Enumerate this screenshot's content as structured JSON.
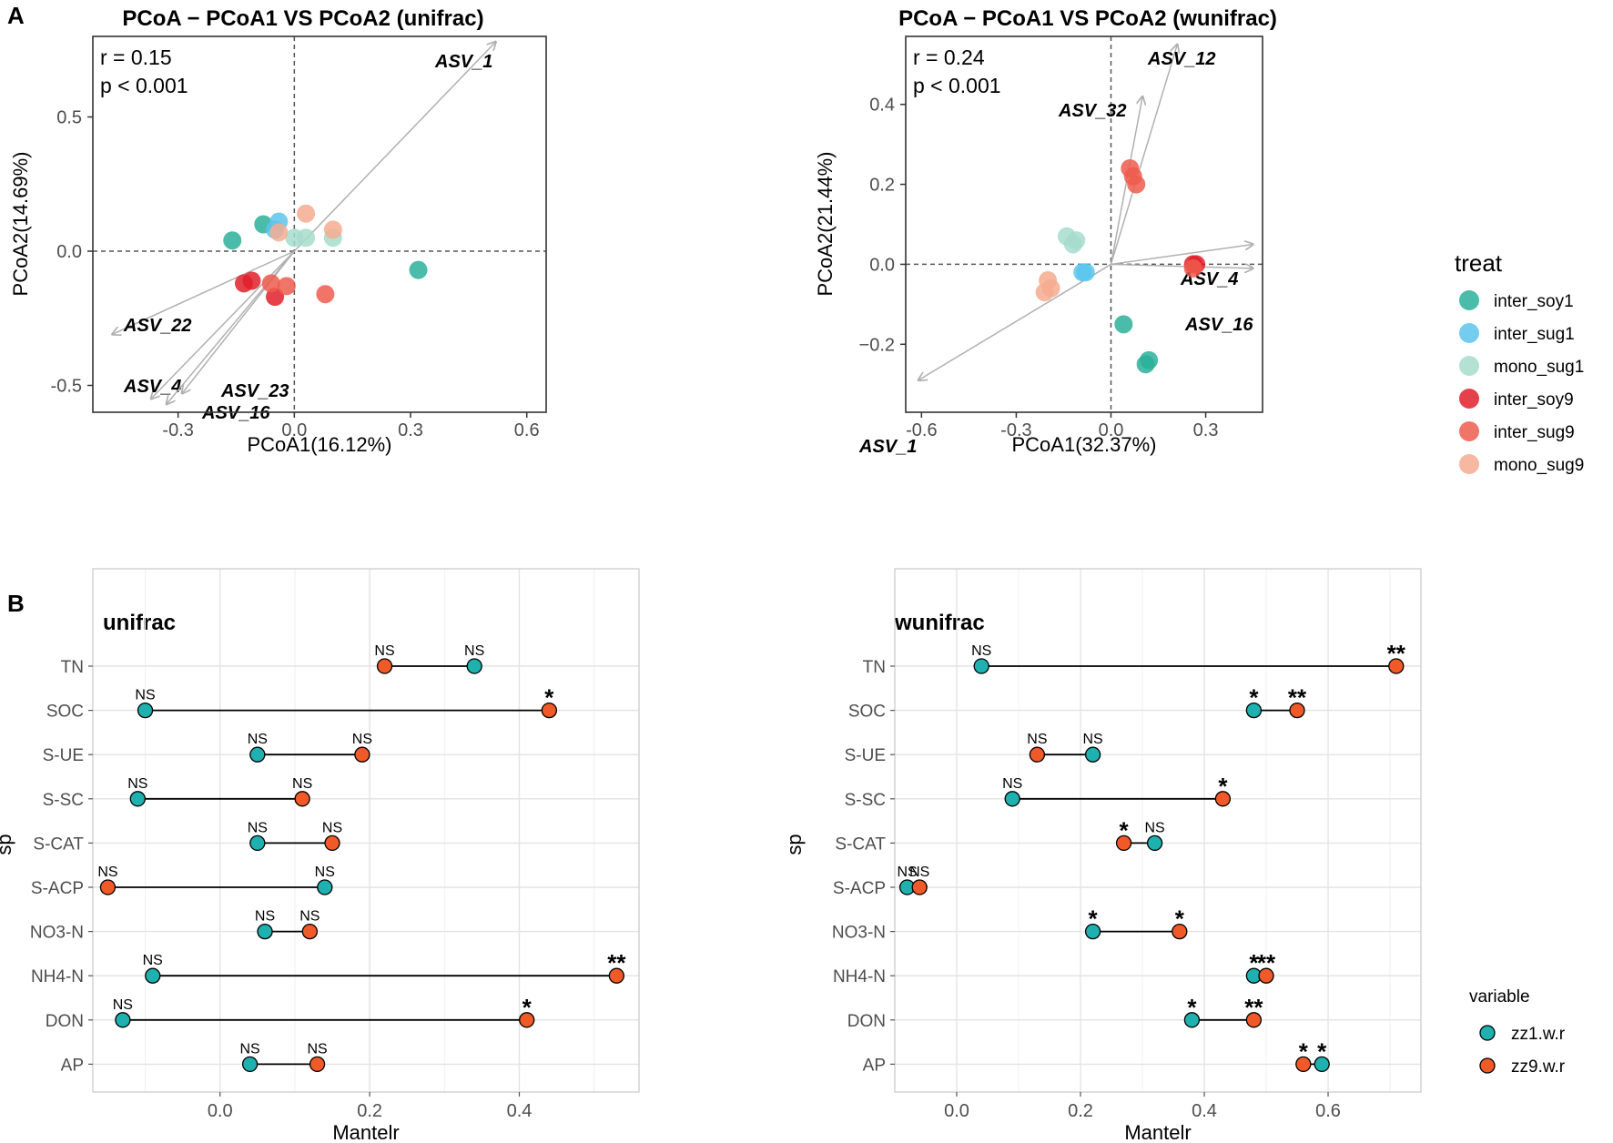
{
  "panel_labels": {
    "a": "A",
    "b": "B"
  },
  "colors": {
    "inter_soy1": "#2ab09a",
    "inter_sug1": "#5cc4ec",
    "mono_sug1": "#a6dccb",
    "inter_soy9": "#e0202a",
    "inter_sug9": "#ee5c4e",
    "mono_sug9": "#f6ab91",
    "zz1": "#1fb0b0",
    "zz9": "#f05a28"
  },
  "chart_data": [
    {
      "type": "scatter",
      "id": "pcoa_unifrac",
      "title": "PCoA − PCoA1 VS PCoA2 (unifrac)",
      "xlabel": "PCoA1(16.12%)",
      "ylabel": "PCoA2(14.69%)",
      "xlim": [
        -0.52,
        0.65
      ],
      "ylim": [
        -0.6,
        0.8
      ],
      "xticks": [
        -0.3,
        0.0,
        0.3,
        0.6
      ],
      "xtick_labels": [
        "-0.3",
        "0.0",
        "0.3",
        "0.6"
      ],
      "yticks": [
        -0.5,
        0.0,
        0.5
      ],
      "ytick_labels": [
        "-0.5",
        "0.0",
        "0.5"
      ],
      "stats": {
        "r": "r = 0.15",
        "p": "p < 0.001"
      },
      "points": [
        {
          "group": "inter_soy1",
          "x": -0.16,
          "y": 0.04
        },
        {
          "group": "inter_soy1",
          "x": -0.08,
          "y": 0.1
        },
        {
          "group": "inter_soy1",
          "x": 0.32,
          "y": -0.07
        },
        {
          "group": "inter_sug1",
          "x": -0.04,
          "y": 0.11
        },
        {
          "group": "inter_sug1",
          "x": -0.05,
          "y": 0.08
        },
        {
          "group": "mono_sug1",
          "x": 0.0,
          "y": 0.05
        },
        {
          "group": "mono_sug1",
          "x": 0.03,
          "y": 0.05
        },
        {
          "group": "mono_sug1",
          "x": 0.1,
          "y": 0.05
        },
        {
          "group": "mono_sug9",
          "x": -0.04,
          "y": 0.07
        },
        {
          "group": "mono_sug9",
          "x": 0.03,
          "y": 0.14
        },
        {
          "group": "mono_sug9",
          "x": 0.1,
          "y": 0.08
        },
        {
          "group": "inter_soy9",
          "x": -0.13,
          "y": -0.12
        },
        {
          "group": "inter_soy9",
          "x": -0.11,
          "y": -0.11
        },
        {
          "group": "inter_soy9",
          "x": -0.05,
          "y": -0.17
        },
        {
          "group": "inter_sug9",
          "x": -0.06,
          "y": -0.12
        },
        {
          "group": "inter_sug9",
          "x": -0.02,
          "y": -0.13
        },
        {
          "group": "inter_sug9",
          "x": 0.08,
          "y": -0.16
        }
      ],
      "arrows": [
        {
          "name": "ASV_1",
          "x": 0.52,
          "y": 0.78
        },
        {
          "name": "ASV_22",
          "x": -0.47,
          "y": -0.31
        },
        {
          "name": "ASV_4",
          "x": -0.37,
          "y": -0.55
        },
        {
          "name": "ASV_23",
          "x": -0.29,
          "y": -0.53
        },
        {
          "name": "ASV_16",
          "x": -0.33,
          "y": -0.57
        }
      ]
    },
    {
      "type": "scatter",
      "id": "pcoa_wunifrac",
      "title": "PCoA − PCoA1 VS PCoA2 (wunifrac)",
      "xlabel": "PCoA1(32.37%)",
      "ylabel": "PCoA2(21.44%)",
      "xlim": [
        -0.65,
        0.48
      ],
      "ylim": [
        -0.37,
        0.57
      ],
      "xticks": [
        -0.6,
        -0.3,
        0.0,
        0.3
      ],
      "xtick_labels": [
        "-0.6",
        "-0.3",
        "0.0",
        "0.3"
      ],
      "yticks": [
        -0.2,
        0.0,
        0.2,
        0.4
      ],
      "ytick_labels": [
        "−0.2",
        "0.0",
        "0.2",
        "0.4"
      ],
      "stats": {
        "r": "r = 0.24",
        "p": "p < 0.001"
      },
      "points": [
        {
          "group": "inter_soy1",
          "x": 0.04,
          "y": -0.15
        },
        {
          "group": "inter_soy1",
          "x": 0.11,
          "y": -0.25
        },
        {
          "group": "inter_soy1",
          "x": 0.12,
          "y": -0.24
        },
        {
          "group": "inter_sug1",
          "x": -0.09,
          "y": -0.02
        },
        {
          "group": "inter_sug1",
          "x": -0.08,
          "y": -0.02
        },
        {
          "group": "mono_sug1",
          "x": -0.14,
          "y": 0.07
        },
        {
          "group": "mono_sug1",
          "x": -0.12,
          "y": 0.05
        },
        {
          "group": "mono_sug1",
          "x": -0.11,
          "y": 0.06
        },
        {
          "group": "mono_sug9",
          "x": -0.2,
          "y": -0.04
        },
        {
          "group": "mono_sug9",
          "x": -0.19,
          "y": -0.06
        },
        {
          "group": "mono_sug9",
          "x": -0.21,
          "y": -0.07
        },
        {
          "group": "inter_soy9",
          "x": 0.26,
          "y": 0.0
        },
        {
          "group": "inter_soy9",
          "x": 0.27,
          "y": 0.0
        },
        {
          "group": "inter_sug9",
          "x": 0.06,
          "y": 0.24
        },
        {
          "group": "inter_sug9",
          "x": 0.07,
          "y": 0.22
        },
        {
          "group": "inter_sug9",
          "x": 0.08,
          "y": 0.2
        },
        {
          "group": "inter_sug9",
          "x": 0.26,
          "y": -0.01
        }
      ],
      "arrows": [
        {
          "name": "ASV_12",
          "x": 0.21,
          "y": 0.55
        },
        {
          "name": "ASV_32",
          "x": 0.1,
          "y": 0.42
        },
        {
          "name": "ASV_4",
          "x": 0.45,
          "y": 0.05
        },
        {
          "name": "ASV_16",
          "x": 0.45,
          "y": -0.01
        },
        {
          "name": "ASV_1",
          "x": -0.61,
          "y": -0.29
        }
      ]
    },
    {
      "type": "dumbbell",
      "id": "mantel_unifrac",
      "title": "unifrac",
      "xlabel": "Mantelr",
      "ylabel": "sp",
      "xlim": [
        -0.17,
        0.56
      ],
      "xticks": [
        0.0,
        0.2,
        0.4
      ],
      "xtick_labels": [
        "0.0",
        "0.2",
        "0.4"
      ],
      "categories": [
        "TN",
        "SOC",
        "S-UE",
        "S-SC",
        "S-CAT",
        "S-ACP",
        "NO3-N",
        "NH4-N",
        "DON",
        "AP"
      ],
      "zz1": [
        0.34,
        -0.1,
        0.05,
        -0.11,
        0.05,
        0.14,
        0.06,
        -0.09,
        -0.13,
        0.04
      ],
      "zz9": [
        0.22,
        0.44,
        0.19,
        0.11,
        0.15,
        -0.15,
        0.12,
        0.53,
        0.41,
        0.13
      ],
      "zz1_sig": [
        "NS",
        "NS",
        "NS",
        "NS",
        "NS",
        "NS",
        "NS",
        "NS",
        "NS",
        "NS"
      ],
      "zz9_sig": [
        "NS",
        "*",
        "NS",
        "NS",
        "NS",
        "NS",
        "NS",
        "**",
        "*",
        "NS"
      ]
    },
    {
      "type": "dumbbell",
      "id": "mantel_wunifrac",
      "title": "wunifrac",
      "xlabel": "Mantelr",
      "ylabel": "sp",
      "xlim": [
        -0.1,
        0.75
      ],
      "xticks": [
        0.0,
        0.2,
        0.4,
        0.6
      ],
      "xtick_labels": [
        "0.0",
        "0.2",
        "0.4",
        "0.6"
      ],
      "categories": [
        "TN",
        "SOC",
        "S-UE",
        "S-SC",
        "S-CAT",
        "S-ACP",
        "NO3-N",
        "NH4-N",
        "DON",
        "AP"
      ],
      "zz1": [
        0.04,
        0.48,
        0.22,
        0.09,
        0.32,
        -0.08,
        0.22,
        0.48,
        0.38,
        0.59
      ],
      "zz9": [
        0.71,
        0.55,
        0.13,
        0.43,
        0.27,
        -0.06,
        0.36,
        0.5,
        0.48,
        0.56
      ],
      "zz1_sig": [
        "NS",
        "*",
        "NS",
        "NS",
        "NS",
        "NS",
        "*",
        "*",
        "*",
        "*"
      ],
      "zz9_sig": [
        "**",
        "**",
        "NS",
        "*",
        "*",
        "NS",
        "*",
        "**",
        "**",
        "*"
      ]
    }
  ],
  "legend_treat": {
    "title": "treat",
    "items": [
      {
        "key": "inter_soy1",
        "label": "inter_soy1"
      },
      {
        "key": "inter_sug1",
        "label": "inter_sug1"
      },
      {
        "key": "mono_sug1",
        "label": "mono_sug1"
      },
      {
        "key": "inter_soy9",
        "label": "inter_soy9"
      },
      {
        "key": "inter_sug9",
        "label": "inter_sug9"
      },
      {
        "key": "mono_sug9",
        "label": "mono_sug9"
      }
    ]
  },
  "legend_variable": {
    "title": "variable",
    "items": [
      {
        "key": "zz1",
        "label": "zz1.w.r"
      },
      {
        "key": "zz9",
        "label": "zz9.w.r"
      }
    ]
  }
}
